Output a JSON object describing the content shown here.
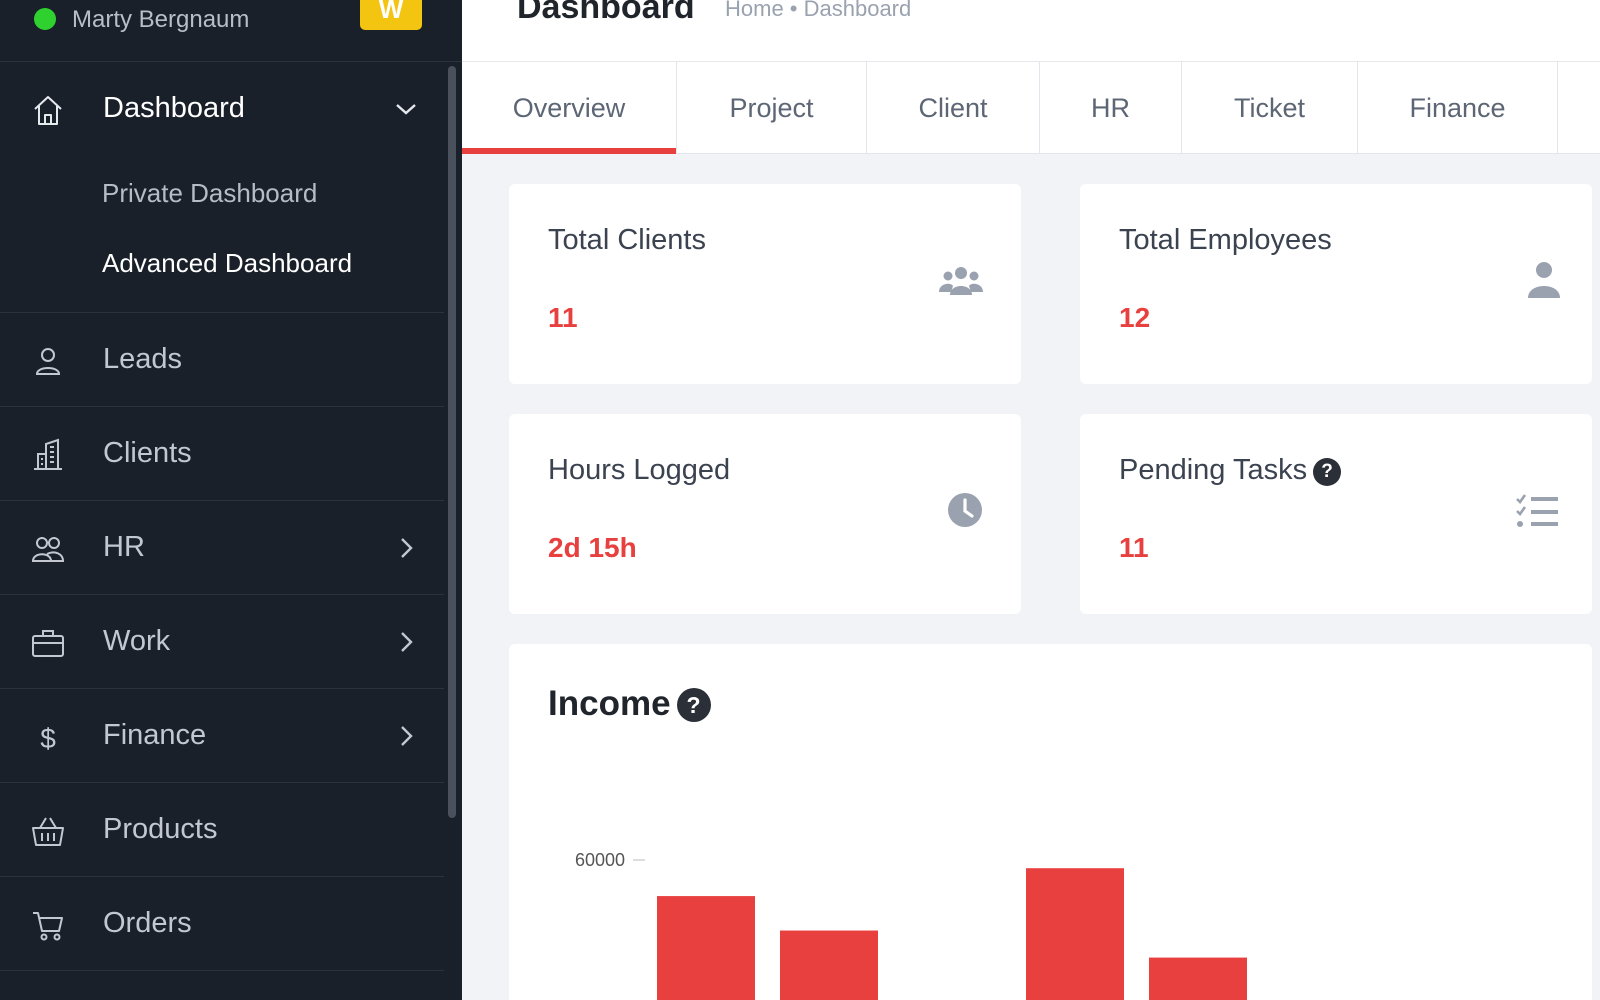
{
  "sidebar": {
    "user_name": "Marty Bergnaum",
    "logo_letter": "W",
    "nav": [
      {
        "label": "Dashboard",
        "icon": "home-icon",
        "expanded": true,
        "sub": [
          "Private Dashboard",
          "Advanced Dashboard"
        ]
      },
      {
        "label": "Leads",
        "icon": "user-icon"
      },
      {
        "label": "Clients",
        "icon": "building-icon"
      },
      {
        "label": "HR",
        "icon": "users-icon",
        "has_children": true
      },
      {
        "label": "Work",
        "icon": "briefcase-icon",
        "has_children": true
      },
      {
        "label": "Finance",
        "icon": "dollar-icon",
        "has_children": true
      },
      {
        "label": "Products",
        "icon": "basket-icon"
      },
      {
        "label": "Orders",
        "icon": "cart-icon"
      }
    ]
  },
  "header": {
    "title": "Dashboard",
    "breadcrumb": "Home • Dashboard"
  },
  "tabs": [
    {
      "label": "Overview",
      "active": true
    },
    {
      "label": "Project"
    },
    {
      "label": "Client"
    },
    {
      "label": "HR"
    },
    {
      "label": "Ticket"
    },
    {
      "label": "Finance"
    }
  ],
  "cards": [
    {
      "title": "Total Clients",
      "value": "11",
      "icon": "users-group-icon"
    },
    {
      "title": "Total Employees",
      "value": "12",
      "icon": "person-icon"
    },
    {
      "title": "Hours Logged",
      "value": "2d 15h",
      "icon": "clock-icon"
    },
    {
      "title": "Pending Tasks",
      "value": "11",
      "icon": "task-list-icon"
    }
  ],
  "income": {
    "title": "Income"
  },
  "chart_data": {
    "type": "bar",
    "title": "Income",
    "y_ticks": [
      "60000"
    ],
    "values": [
      55600,
      51400,
      null,
      59000,
      48100
    ],
    "bar_color": "#e8403f"
  },
  "colors": {
    "accent": "#e8403f",
    "sidebar_bg": "#1a202a",
    "status_online": "#2fd12f",
    "logo_bg": "#f3c410"
  }
}
